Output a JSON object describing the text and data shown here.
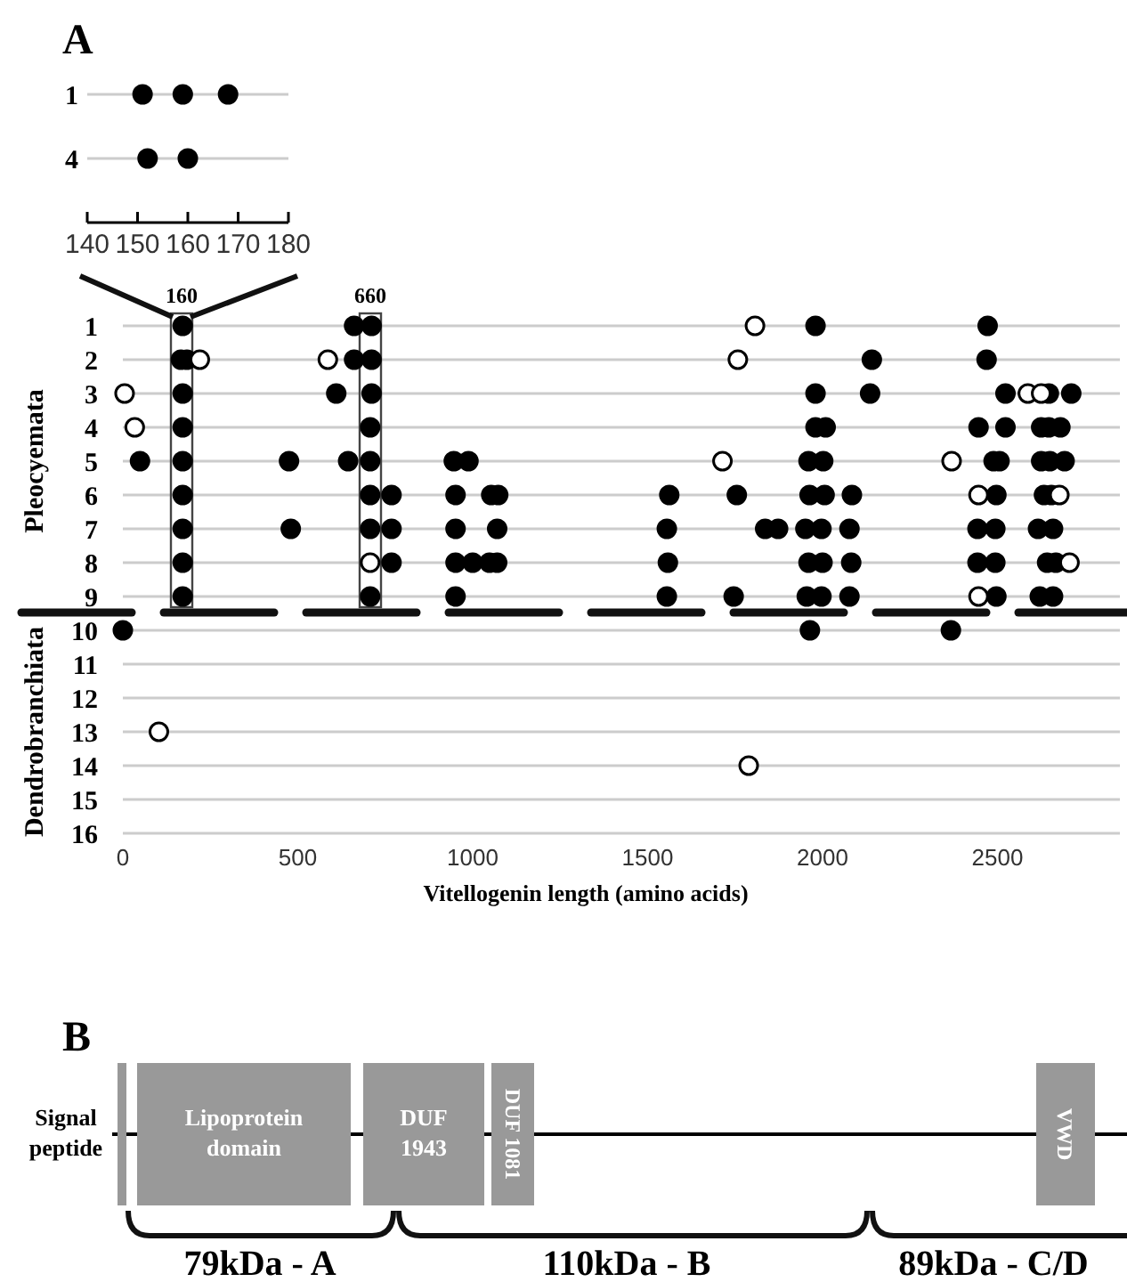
{
  "chart_data": [
    {
      "type": "scatter",
      "title": "A",
      "orientation": "horizontal",
      "categories": [
        "1",
        "4"
      ],
      "xlim": [
        140,
        180
      ],
      "xticks": [
        140,
        150,
        160,
        170,
        180
      ],
      "grid": "y",
      "marker": "circle",
      "series": [
        {
          "color": "#000000",
          "x": [
            "1",
            "1",
            "1",
            "4",
            "4"
          ],
          "values": [
            151,
            159,
            168,
            152,
            160
          ]
        }
      ]
    },
    {
      "type": "scatter",
      "orientation": "horizontal",
      "categories": [
        "1",
        "2",
        "3",
        "4",
        "5",
        "6",
        "7",
        "8",
        "9",
        "10",
        "11",
        "12",
        "13",
        "14",
        "15",
        "16"
      ],
      "xlim": [
        0,
        2850
      ],
      "xticks": [
        0,
        500,
        1000,
        1500,
        2000,
        2500
      ],
      "xlabel": "Vitellogenin length (amino acids)",
      "grid": "y",
      "marker": "circle",
      "annotations": [
        "Pleocyemata",
        "Dendrobranchiata",
        "160",
        "660"
      ],
      "series": [
        {
          "color": "#000000",
          "x": [
            "1",
            "1",
            "1",
            "1",
            "1",
            "2",
            "2",
            "2",
            "2",
            "2",
            "2",
            "3",
            "3",
            "3",
            "3",
            "3",
            "3",
            "3",
            "3",
            "4",
            "4",
            "4",
            "4",
            "4",
            "4",
            "4",
            "4",
            "4",
            "5",
            "5",
            "5",
            "5",
            "5",
            "5",
            "5",
            "5",
            "5",
            "5",
            "5",
            "5",
            "5",
            "5",
            "6",
            "6",
            "6",
            "6",
            "6",
            "6",
            "6",
            "6",
            "6",
            "6",
            "6",
            "6",
            "6",
            "6",
            "7",
            "7",
            "7",
            "7",
            "7",
            "7",
            "7",
            "7",
            "7",
            "7",
            "7",
            "7",
            "7",
            "7",
            "7",
            "7",
            "8",
            "8",
            "8",
            "8",
            "8",
            "8",
            "8",
            "8",
            "8",
            "8",
            "8",
            "8",
            "8",
            "8",
            "9",
            "9",
            "9",
            "9",
            "9",
            "9",
            "9",
            "9",
            "9",
            "9",
            "9",
            "10",
            "10",
            "10"
          ],
          "values": [
            171,
            661,
            711,
            1980,
            2472,
            166,
            183,
            661,
            711,
            2141,
            2469,
            171,
            610,
            711,
            1980,
            2136,
            2523,
            2647,
            2711,
            171,
            707,
            1980,
            2009,
            2446,
            2523,
            2625,
            2647,
            2680,
            49,
            171,
            475,
            644,
            707,
            946,
            988,
            1960,
            2002,
            2489,
            2506,
            2625,
            2650,
            2692,
            171,
            707,
            768,
            951,
            1053,
            1073,
            1562,
            1755,
            1963,
            2006,
            2084,
            2497,
            2633,
            2654,
            171,
            480,
            707,
            768,
            951,
            1070,
            1555,
            1836,
            1873,
            1951,
            1997,
            2077,
            2443,
            2494,
            2616,
            2659,
            171,
            768,
            951,
            1000,
            1048,
            1070,
            1558,
            1960,
            2000,
            2082,
            2443,
            2494,
            2642,
            2667,
            171,
            707,
            951,
            1555,
            1746,
            1955,
            1997,
            2077,
            2497,
            2621,
            2659,
            0,
            1964,
            2367
          ]
        },
        {
          "color": "#ffffff",
          "x": [
            "1",
            "2",
            "2",
            "2",
            "3",
            "3",
            "3",
            "4",
            "5",
            "5",
            "6",
            "6",
            "8",
            "8",
            "9",
            "13",
            "14"
          ],
          "values": [
            1807,
            220,
            586,
            1758,
            5,
            2587,
            2625,
            34,
            1714,
            2369,
            2446,
            2677,
            707,
            2706,
            2446,
            103,
            1789
          ]
        }
      ]
    },
    {
      "type": "other",
      "title": "B",
      "annotations": [
        "Signal peptide",
        "Lipoprotein domain",
        "DUF 1943",
        "DUF 1081",
        "VWD",
        "79kDa - A",
        "110kDa - B",
        "89kDa - C/D"
      ]
    }
  ]
}
